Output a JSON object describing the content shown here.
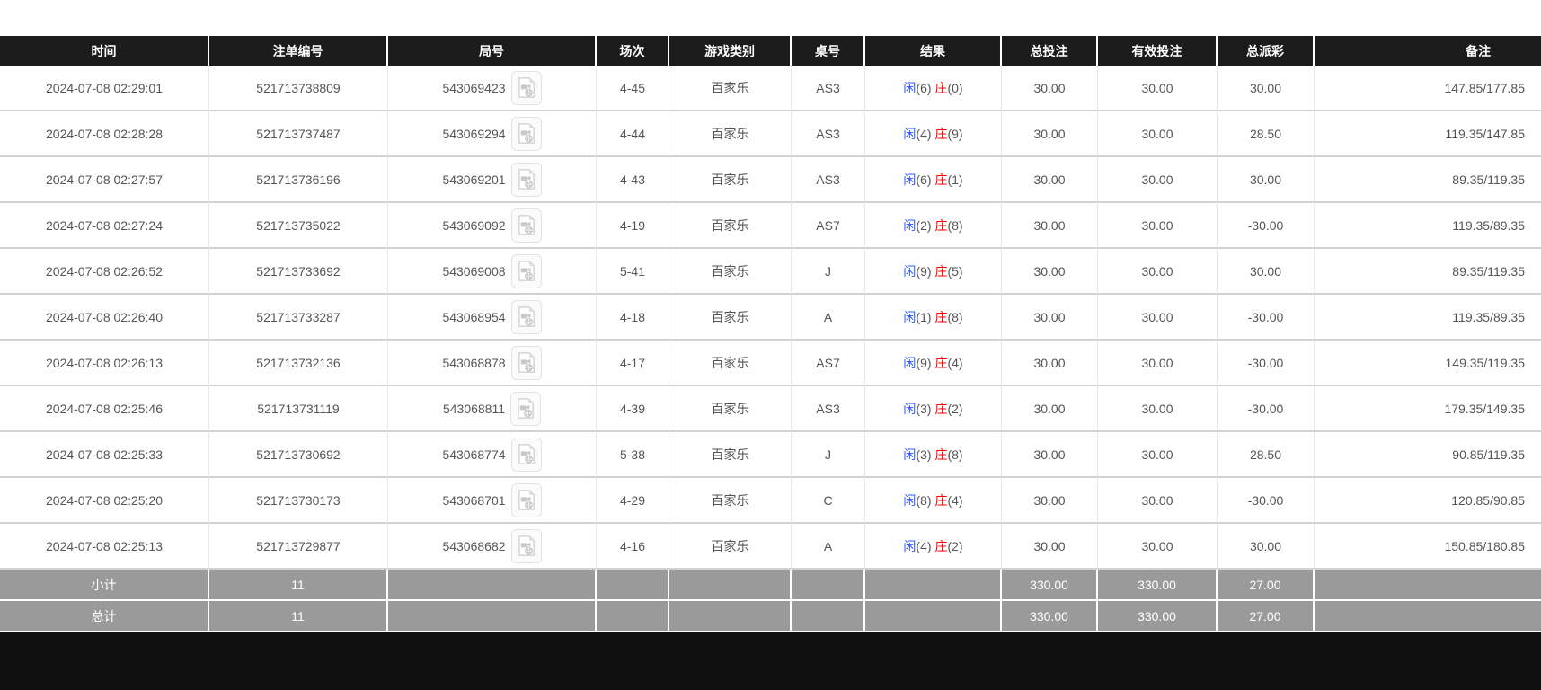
{
  "page": {
    "background": "#ffffff",
    "bottom_bar_color": "#101010"
  },
  "table": {
    "header": {
      "bg": "#1c1c1c",
      "text_color": "#ffffff",
      "columns": [
        "时间",
        "注单编号",
        "局号",
        "场次",
        "游戏类别",
        "桌号",
        "结果",
        "总投注",
        "有效投注",
        "总派彩",
        "备注"
      ]
    },
    "colors": {
      "player_blue": "#2e58ff",
      "banker_red": "#ff0000",
      "total_bet_blue": "#2e58ff",
      "negative_payout_red": "#ff0000",
      "summary_bg": "#9a9a9a",
      "row_text": "#555555"
    },
    "icon": {
      "name": "video-replay-icon"
    },
    "rows": [
      {
        "time": "2024-07-08 02:29:01",
        "bet_id": "521713738809",
        "round": "543069423",
        "session": "4-45",
        "game_type": "百家乐",
        "table_no": "AS3",
        "result": {
          "player_label": "闲",
          "player_score": "(6)",
          "banker_label": "庄",
          "banker_score": "(0)"
        },
        "total_bet": "30.00",
        "valid_bet": "30.00",
        "total_payout": "30.00",
        "payout_negative": false,
        "remark": "147.85/177.85"
      },
      {
        "time": "2024-07-08 02:28:28",
        "bet_id": "521713737487",
        "round": "543069294",
        "session": "4-44",
        "game_type": "百家乐",
        "table_no": "AS3",
        "result": {
          "player_label": "闲",
          "player_score": "(4)",
          "banker_label": "庄",
          "banker_score": "(9)"
        },
        "total_bet": "30.00",
        "valid_bet": "30.00",
        "total_payout": "28.50",
        "payout_negative": false,
        "remark": "119.35/147.85"
      },
      {
        "time": "2024-07-08 02:27:57",
        "bet_id": "521713736196",
        "round": "543069201",
        "session": "4-43",
        "game_type": "百家乐",
        "table_no": "AS3",
        "result": {
          "player_label": "闲",
          "player_score": "(6)",
          "banker_label": "庄",
          "banker_score": "(1)"
        },
        "total_bet": "30.00",
        "valid_bet": "30.00",
        "total_payout": "30.00",
        "payout_negative": false,
        "remark": "89.35/119.35"
      },
      {
        "time": "2024-07-08 02:27:24",
        "bet_id": "521713735022",
        "round": "543069092",
        "session": "4-19",
        "game_type": "百家乐",
        "table_no": "AS7",
        "result": {
          "player_label": "闲",
          "player_score": "(2)",
          "banker_label": "庄",
          "banker_score": "(8)"
        },
        "total_bet": "30.00",
        "valid_bet": "30.00",
        "total_payout": "-30.00",
        "payout_negative": true,
        "remark": "119.35/89.35"
      },
      {
        "time": "2024-07-08 02:26:52",
        "bet_id": "521713733692",
        "round": "543069008",
        "session": "5-41",
        "game_type": "百家乐",
        "table_no": "J",
        "result": {
          "player_label": "闲",
          "player_score": "(9)",
          "banker_label": "庄",
          "banker_score": "(5)"
        },
        "total_bet": "30.00",
        "valid_bet": "30.00",
        "total_payout": "30.00",
        "payout_negative": false,
        "remark": "89.35/119.35"
      },
      {
        "time": "2024-07-08 02:26:40",
        "bet_id": "521713733287",
        "round": "543068954",
        "session": "4-18",
        "game_type": "百家乐",
        "table_no": "A",
        "result": {
          "player_label": "闲",
          "player_score": "(1)",
          "banker_label": "庄",
          "banker_score": "(8)"
        },
        "total_bet": "30.00",
        "valid_bet": "30.00",
        "total_payout": "-30.00",
        "payout_negative": true,
        "remark": "119.35/89.35"
      },
      {
        "time": "2024-07-08 02:26:13",
        "bet_id": "521713732136",
        "round": "543068878",
        "session": "4-17",
        "game_type": "百家乐",
        "table_no": "AS7",
        "result": {
          "player_label": "闲",
          "player_score": "(9)",
          "banker_label": "庄",
          "banker_score": "(4)"
        },
        "total_bet": "30.00",
        "valid_bet": "30.00",
        "total_payout": "-30.00",
        "payout_negative": true,
        "remark": "149.35/119.35"
      },
      {
        "time": "2024-07-08 02:25:46",
        "bet_id": "521713731119",
        "round": "543068811",
        "session": "4-39",
        "game_type": "百家乐",
        "table_no": "AS3",
        "result": {
          "player_label": "闲",
          "player_score": "(3)",
          "banker_label": "庄",
          "banker_score": "(2)"
        },
        "total_bet": "30.00",
        "valid_bet": "30.00",
        "total_payout": "-30.00",
        "payout_negative": true,
        "remark": "179.35/149.35"
      },
      {
        "time": "2024-07-08 02:25:33",
        "bet_id": "521713730692",
        "round": "543068774",
        "session": "5-38",
        "game_type": "百家乐",
        "table_no": "J",
        "result": {
          "player_label": "闲",
          "player_score": "(3)",
          "banker_label": "庄",
          "banker_score": "(8)"
        },
        "total_bet": "30.00",
        "valid_bet": "30.00",
        "total_payout": "28.50",
        "payout_negative": false,
        "remark": "90.85/119.35"
      },
      {
        "time": "2024-07-08 02:25:20",
        "bet_id": "521713730173",
        "round": "543068701",
        "session": "4-29",
        "game_type": "百家乐",
        "table_no": "C",
        "result": {
          "player_label": "闲",
          "player_score": "(8)",
          "banker_label": "庄",
          "banker_score": "(4)"
        },
        "total_bet": "30.00",
        "valid_bet": "30.00",
        "total_payout": "-30.00",
        "payout_negative": true,
        "remark": "120.85/90.85"
      },
      {
        "time": "2024-07-08 02:25:13",
        "bet_id": "521713729877",
        "round": "543068682",
        "session": "4-16",
        "game_type": "百家乐",
        "table_no": "A",
        "result": {
          "player_label": "闲",
          "player_score": "(4)",
          "banker_label": "庄",
          "banker_score": "(2)"
        },
        "total_bet": "30.00",
        "valid_bet": "30.00",
        "total_payout": "30.00",
        "payout_negative": false,
        "remark": "150.85/180.85"
      }
    ],
    "summary_rows": [
      {
        "label": "小计",
        "count": "11",
        "total_bet": "330.00",
        "valid_bet": "330.00",
        "total_payout": "27.00"
      },
      {
        "label": "总计",
        "count": "11",
        "total_bet": "330.00",
        "valid_bet": "330.00",
        "total_payout": "27.00"
      }
    ]
  }
}
